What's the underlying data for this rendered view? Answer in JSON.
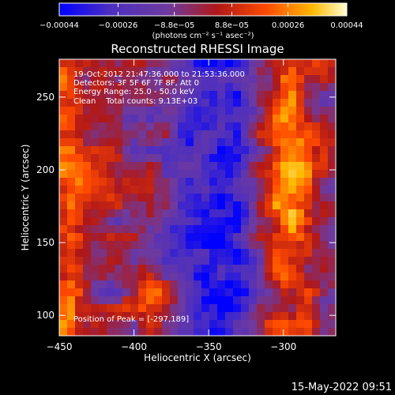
{
  "chart_data": {
    "type": "heatmap",
    "title": "Reconstructed RHESSI Image",
    "xlabel": "Heliocentric X (arcsec)",
    "ylabel": "Heliocentric Y (arcsec)",
    "xlim": [
      -450,
      -265
    ],
    "ylim": [
      86,
      276
    ],
    "x_ticks": [
      -450,
      -400,
      -350,
      -300
    ],
    "x_tick_labels": [
      "−450",
      "−400",
      "−350",
      "−300"
    ],
    "y_ticks": [
      100,
      150,
      200,
      250
    ],
    "y_tick_labels": [
      "100",
      "150",
      "200",
      "250"
    ],
    "colorbar": {
      "ticks": [
        -0.00044,
        -0.00026,
        -8.8e-05,
        8.8e-05,
        0.00026,
        0.00044
      ],
      "tick_labels": [
        "−0.00044",
        "−0.00026",
        "−8.8e−05",
        "8.8e−05",
        "0.00026",
        "0.00044"
      ],
      "unit_label": "(photons cm⁻² s⁻¹ asec⁻²)",
      "range": [
        -0.00044,
        0.00044
      ],
      "colors": [
        "#0000ff",
        "#4d2fc0",
        "#6e3a9e",
        "#b01818",
        "#ff4a00",
        "#ffb800",
        "#ffffd0"
      ]
    },
    "annotations": [
      "19-Oct-2012 21:47:36.000 to 21:53:36.000",
      "Detectors: 3F 5F 6F 7F 8F, Att 0",
      "Energy Range: 25.0 - 50.0 keV",
      "Clean    Total counts: 9.13E+03"
    ],
    "peak_text": "Position of Peak = [-297,189]",
    "peak_position": [
      -297,
      189
    ],
    "value_range": [
      -0.00044,
      0.00044
    ]
  },
  "footer_timestamp": "15-May-2022 09:51"
}
